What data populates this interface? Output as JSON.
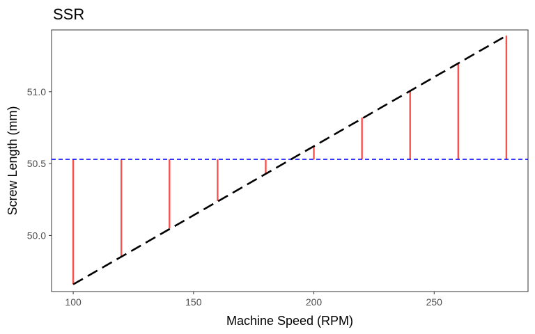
{
  "chart_data": {
    "type": "line",
    "title": "SSR",
    "xlabel": "Machine Speed (RPM)",
    "ylabel": "Screw Length (mm)",
    "xlim": [
      91.0,
      289.0
    ],
    "ylim": [
      49.61,
      51.43
    ],
    "x_ticks": [
      100,
      150,
      200,
      250
    ],
    "y_ticks": [
      50.0,
      50.5,
      51.0
    ],
    "y_tick_labels": [
      "50.0",
      "50.5",
      "51.0"
    ],
    "mean_line": {
      "y": 50.53,
      "color": "#0000ff",
      "style": "dashed"
    },
    "regression_line": {
      "x": [
        100,
        280
      ],
      "y": [
        49.66,
        51.39
      ],
      "color": "#000000",
      "style": "dashed"
    },
    "segments": {
      "x": [
        100,
        120,
        140,
        160,
        180,
        200,
        220,
        240,
        260,
        280
      ],
      "y": [
        49.66,
        49.85,
        50.05,
        50.24,
        50.43,
        50.62,
        50.82,
        51.01,
        51.2,
        51.39
      ],
      "color": "#f8524f"
    },
    "grid": false,
    "legend": "none"
  }
}
